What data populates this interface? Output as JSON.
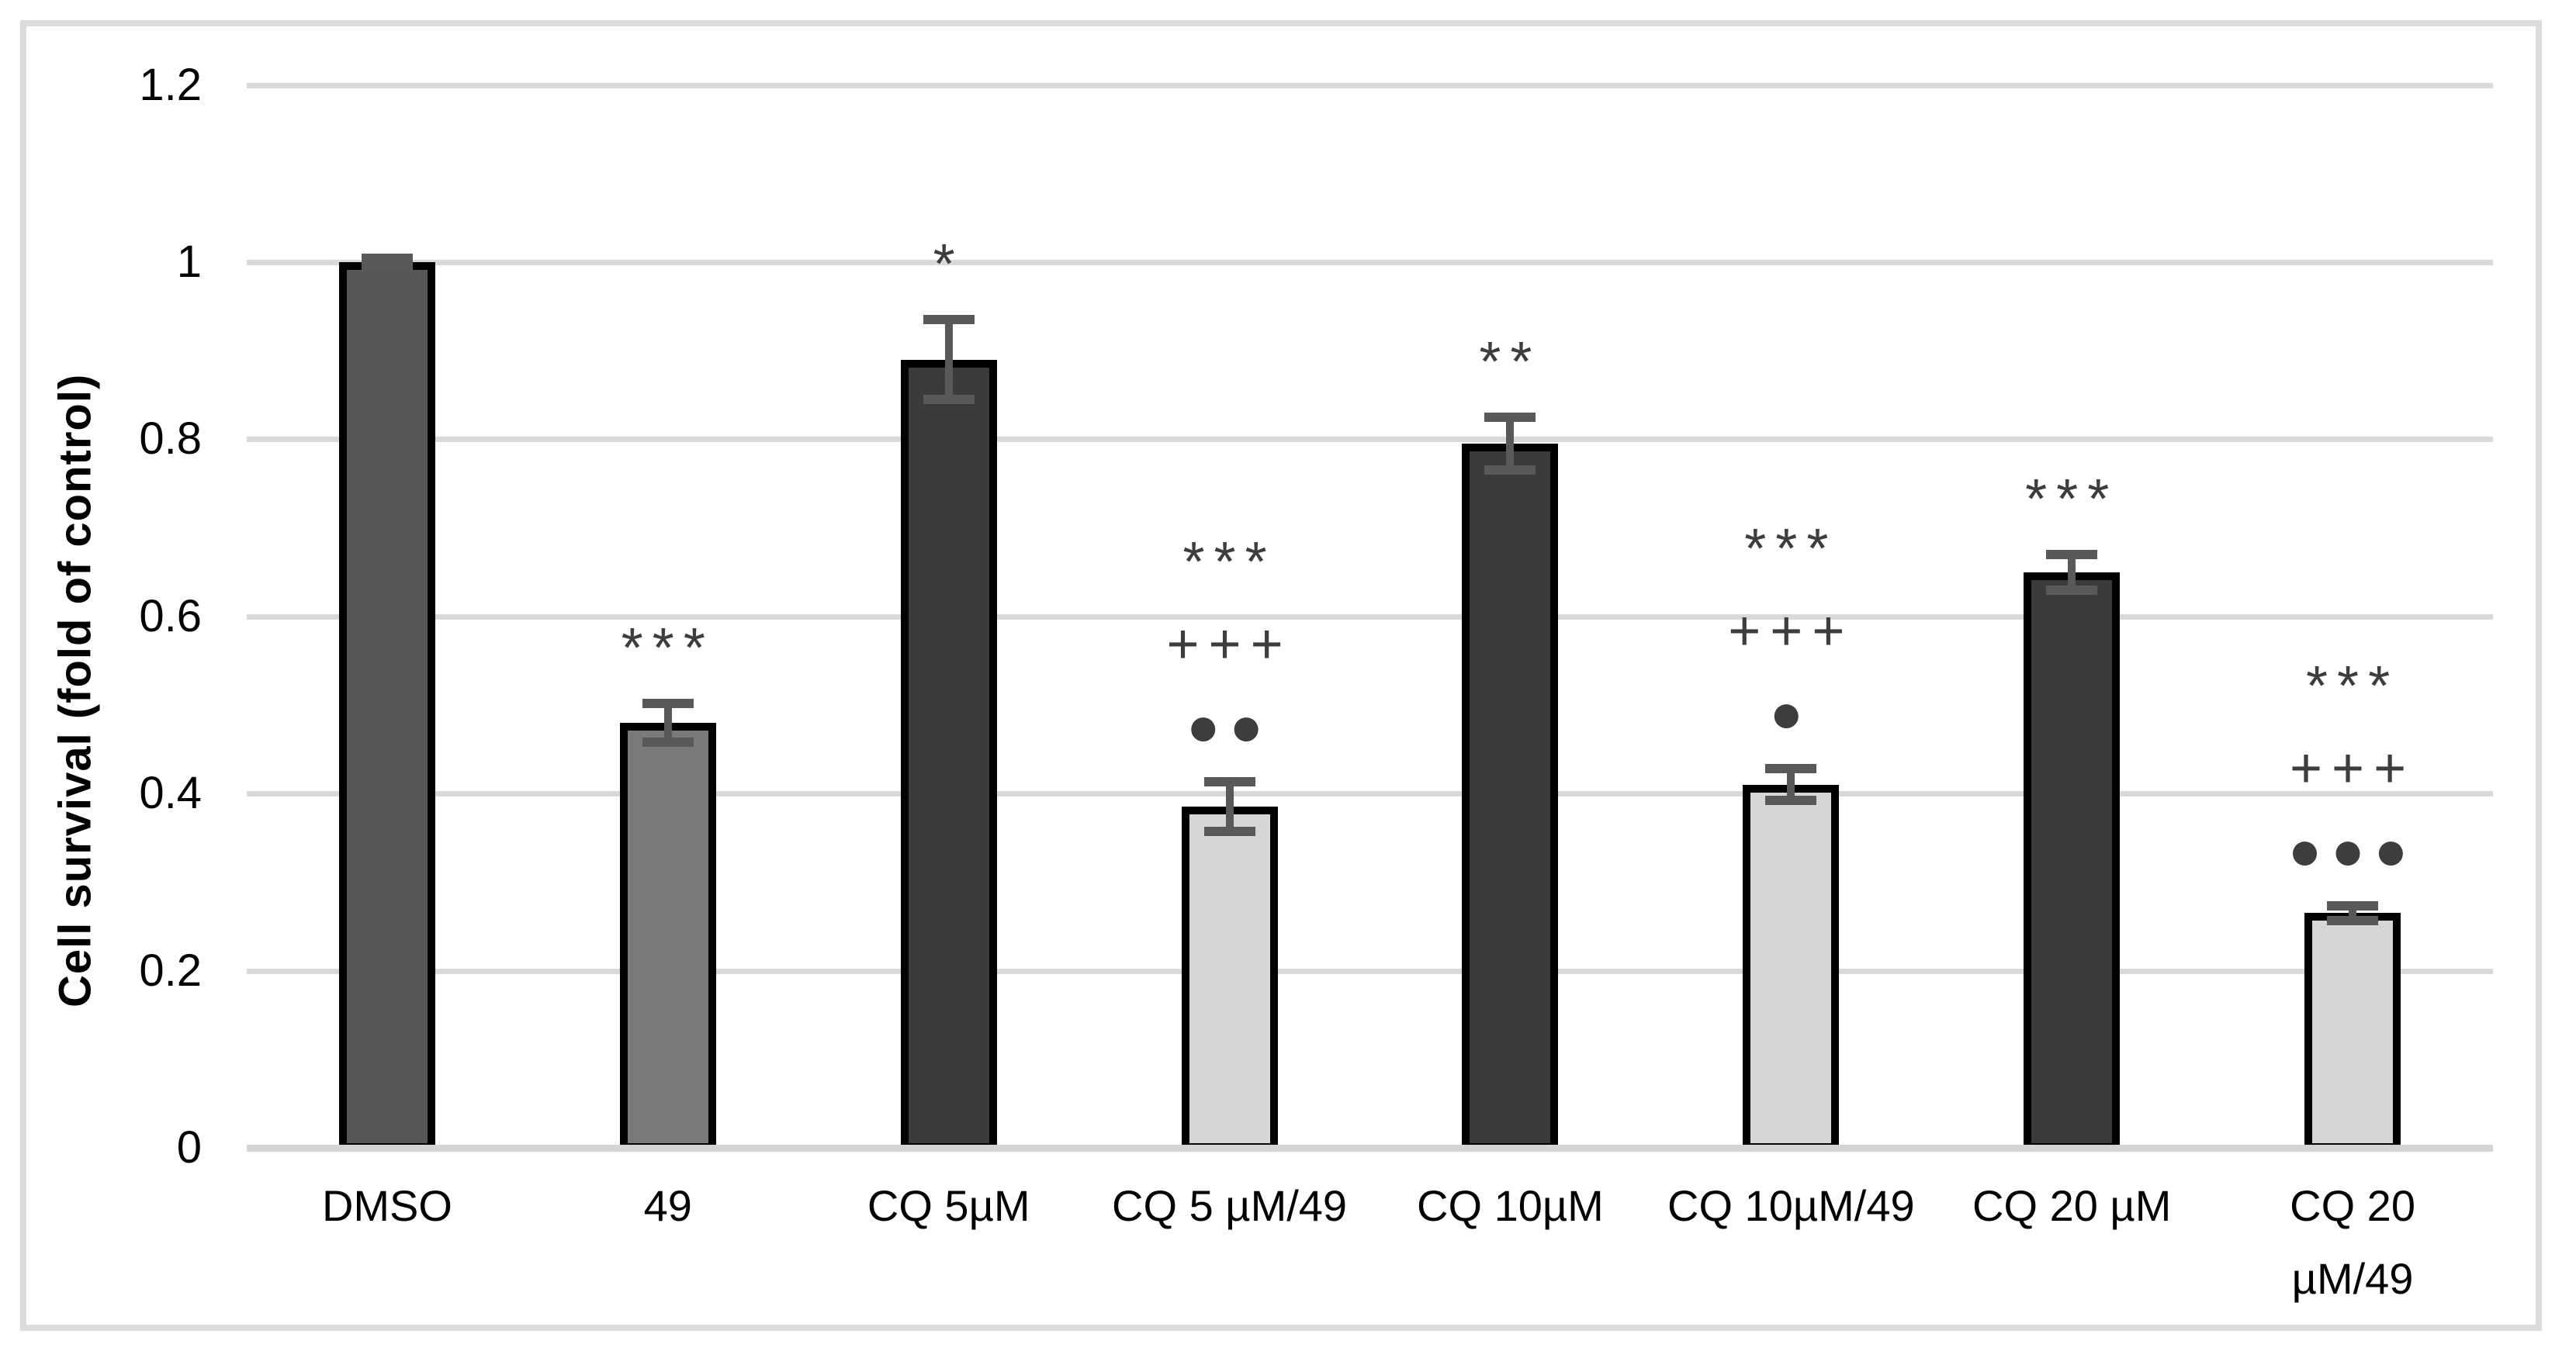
{
  "chart_data": {
    "type": "bar",
    "title": "",
    "xlabel": "",
    "ylabel": "Cell survival (fold of control)",
    "ylim": [
      0,
      1.2
    ],
    "yticks": [
      0,
      0.2,
      0.4,
      0.6,
      0.8,
      1,
      1.2
    ],
    "ytick_labels": [
      "0",
      "0.2",
      "0.4",
      "0.6",
      "0.8",
      "1",
      "1.2"
    ],
    "grid": true,
    "legend": false,
    "categories": [
      "DMSO",
      "49",
      "CQ 5µM",
      "CQ 5 µM/49",
      "CQ 10µM",
      "CQ 10µM/49",
      "CQ 20 µM",
      "CQ 20 µM/49"
    ],
    "x_tick_lines": [
      [
        "DMSO"
      ],
      [
        "49"
      ],
      [
        "CQ 5µM"
      ],
      [
        "CQ 5 µM/49"
      ],
      [
        "CQ 10µM"
      ],
      [
        "CQ 10µM/49"
      ],
      [
        "CQ 20 µM"
      ],
      [
        "CQ 20",
        "µM/49"
      ]
    ],
    "values": [
      1.0,
      0.48,
      0.89,
      0.385,
      0.795,
      0.41,
      0.65,
      0.265
    ],
    "errors": [
      0.004,
      0.022,
      0.045,
      0.028,
      0.03,
      0.018,
      0.02,
      0.008
    ],
    "bar_colors": [
      "#575757",
      "#7a7a7a",
      "#3b3b3b",
      "#d6d6d6",
      "#3b3b3b",
      "#d6d6d6",
      "#3b3b3b",
      "#d6d6d6"
    ],
    "annotations": [
      [],
      [
        "***"
      ],
      [
        "*"
      ],
      [
        "***",
        "+++",
        "●●"
      ],
      [
        "**"
      ],
      [
        "***",
        "+++",
        "●"
      ],
      [
        "***"
      ],
      [
        "***",
        "+++",
        "●●●"
      ]
    ]
  },
  "colors": {
    "bar_border": "#000000",
    "error_bar": "#595959",
    "gridline": "#d9d9d9",
    "axis_baseline": "#d4d4d4",
    "frame_border": "#dcdcdc",
    "annotation": "#3d3d3d",
    "text": "#000000",
    "background": "#ffffff"
  }
}
